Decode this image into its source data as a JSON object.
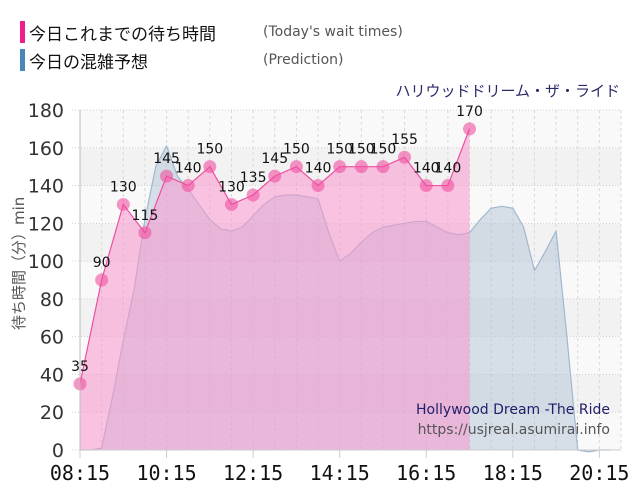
{
  "legend": {
    "items": [
      {
        "label_ja": "今日これまでの待ち時間",
        "label_en": "(Today's wait times)",
        "color": "#ee1e8c"
      },
      {
        "label_ja": "今日の混雑予想",
        "label_en": "(Prediction)",
        "color": "#4a86b8"
      }
    ]
  },
  "ride_name_ja": "ハリウッドドリーム・ザ・ライド",
  "watermark": {
    "ride_name_en": "Hollywood Dream -The Ride",
    "site": "https://usjreal.asumirai.info"
  },
  "colors": {
    "actual_fill": "rgba(250,150,205,0.55)",
    "actual_line": "#ee4fa0",
    "actual_point": "rgba(240,80,160,0.6)",
    "prediction_fill": "rgba(170,190,210,0.45)",
    "prediction_line": "#9fb8cf"
  },
  "chart_data": {
    "type": "area",
    "title": "ハリウッドドリーム・ザ・ライド",
    "xlabel": "",
    "ylabel": "待ち時間（分）min",
    "ylim": [
      0,
      180
    ],
    "yticks": [
      0,
      20,
      40,
      60,
      80,
      100,
      120,
      140,
      160,
      180
    ],
    "xticks": [
      "08:15",
      "10:15",
      "12:15",
      "14:15",
      "16:15",
      "18:15",
      "20:15"
    ],
    "grid": true,
    "legend_position": "top-left",
    "series": [
      {
        "name": "今日これまでの待ち時間 (Today's wait times)",
        "x": [
          "08:15",
          "08:45",
          "09:15",
          "09:45",
          "10:15",
          "10:45",
          "11:15",
          "11:45",
          "12:15",
          "12:45",
          "13:15",
          "13:45",
          "14:15",
          "14:45",
          "15:15",
          "15:45",
          "16:15",
          "16:45",
          "17:15"
        ],
        "values": [
          35,
          90,
          130,
          115,
          145,
          140,
          150,
          130,
          135,
          145,
          150,
          140,
          150,
          150,
          150,
          155,
          140,
          140,
          170
        ],
        "labeled": true
      },
      {
        "name": "今日の混雑予想 (Prediction)",
        "x": [
          "08:15",
          "08:30",
          "08:45",
          "09:00",
          "09:15",
          "09:30",
          "09:45",
          "10:00",
          "10:15",
          "10:30",
          "10:45",
          "11:00",
          "11:15",
          "11:30",
          "11:45",
          "12:00",
          "12:15",
          "12:30",
          "12:45",
          "13:00",
          "13:15",
          "13:30",
          "13:45",
          "14:00",
          "14:15",
          "14:30",
          "14:45",
          "15:00",
          "15:15",
          "15:30",
          "15:45",
          "16:00",
          "16:15",
          "16:30",
          "16:45",
          "17:00",
          "17:15",
          "17:30",
          "17:45",
          "18:00",
          "18:15",
          "18:30",
          "18:45",
          "19:00",
          "19:15",
          "19:30",
          "19:45",
          "20:00",
          "20:15",
          "20:30"
        ],
        "values": [
          0,
          0,
          1,
          28,
          58,
          85,
          122,
          150,
          161,
          145,
          138,
          130,
          122,
          117,
          116,
          118,
          124,
          130,
          134,
          135,
          135,
          134,
          133,
          115,
          100,
          104,
          110,
          115,
          118,
          119,
          120,
          121,
          121,
          118,
          115,
          114,
          115,
          122,
          128,
          129,
          128,
          118,
          95,
          105,
          116,
          60,
          0,
          -1,
          0,
          0
        ]
      }
    ]
  }
}
